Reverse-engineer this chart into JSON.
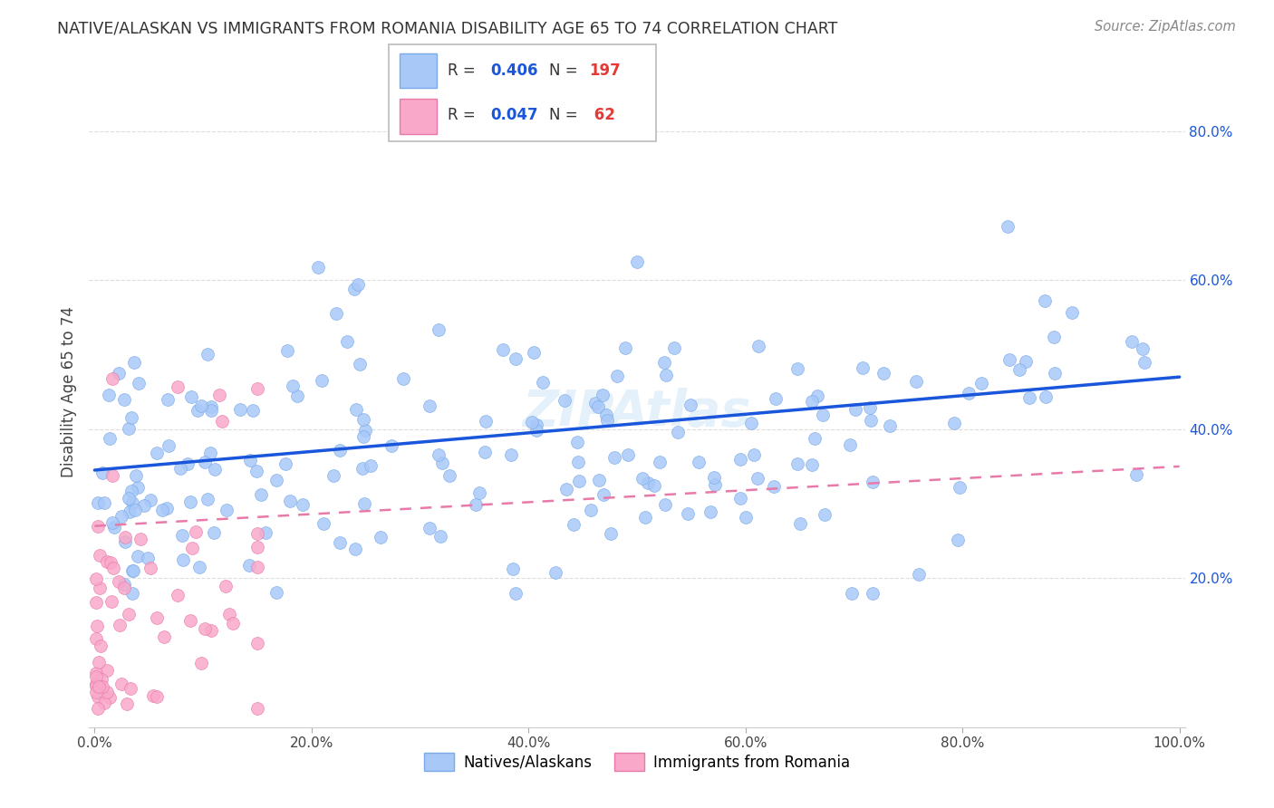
{
  "title": "NATIVE/ALASKAN VS IMMIGRANTS FROM ROMANIA DISABILITY AGE 65 TO 74 CORRELATION CHART",
  "source": "Source: ZipAtlas.com",
  "ylabel": "Disability Age 65 to 74",
  "native_color": "#a8c8f8",
  "native_edge_color": "#7aaae8",
  "romania_color": "#f9a8c9",
  "romania_edge_color": "#e87aaa",
  "native_R": 0.406,
  "native_N": 197,
  "romania_R": 0.047,
  "romania_N": 62,
  "legend_R_color": "#1a56db",
  "legend_N_color": "#e53935",
  "native_line_color": "#1a56db",
  "romania_line_color": "#e87aaa",
  "grid_color": "#dddddd",
  "background_color": "#ffffff",
  "ytick_color": "#1a56db",
  "xtick_color": "#444444",
  "title_color": "#333333",
  "source_color": "#888888",
  "ylabel_color": "#444444"
}
